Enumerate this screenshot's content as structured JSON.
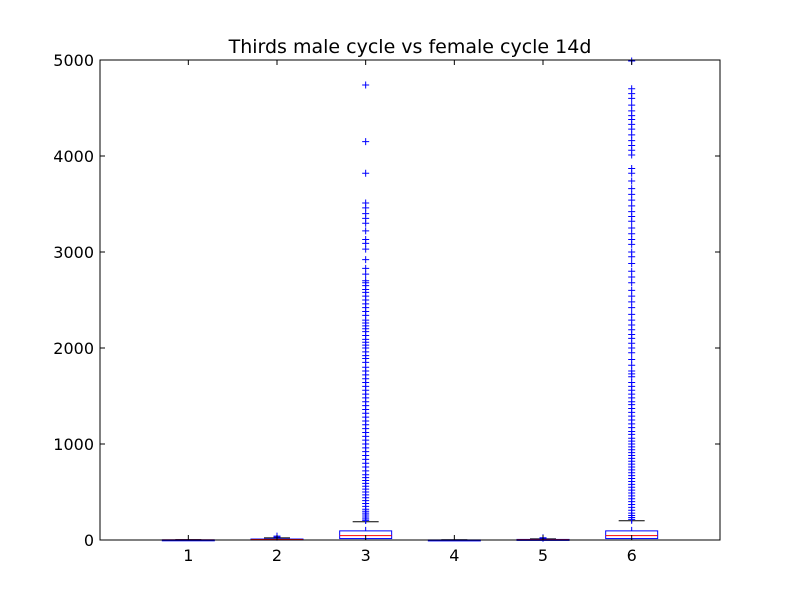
{
  "chart_data": {
    "type": "box",
    "title": "Thirds male cycle vs female cycle 14d",
    "xlabel": "",
    "ylabel": "",
    "categories": [
      "1",
      "2",
      "3",
      "4",
      "5",
      "6"
    ],
    "ylim": [
      0,
      5000
    ],
    "yticks": [
      0,
      1000,
      2000,
      3000,
      4000,
      5000
    ],
    "grid": false,
    "legend": "none",
    "colors": {
      "box": "#0000ff",
      "median": "#ff0000",
      "whisker": "#000000",
      "flier": "#0000ff"
    },
    "flier_marker": "+",
    "boxes": [
      {
        "category": "1",
        "q1": 0,
        "median": 1,
        "q3": 2,
        "whisker_low": 0,
        "whisker_high": 4,
        "fliers": []
      },
      {
        "category": "2",
        "q1": 2,
        "median": 5,
        "q3": 10,
        "whisker_low": 0,
        "whisker_high": 22,
        "fliers": [
          30,
          40
        ]
      },
      {
        "category": "3",
        "q1": 15,
        "median": 45,
        "q3": 95,
        "whisker_low": 0,
        "whisker_high": 190,
        "fliers": [
          4740,
          4150,
          3820,
          3510,
          3460,
          3400,
          3350,
          3300,
          3220,
          3130,
          3090,
          3030,
          2920,
          2830,
          2770,
          2700,
          2680,
          2650,
          2610,
          2580,
          2540,
          2500,
          2460,
          2420,
          2380,
          2340,
          2290,
          2260,
          2230,
          2200,
          2170,
          2130,
          2090,
          2060,
          2030,
          2000,
          1960,
          1920,
          1890,
          1850,
          1800,
          1760,
          1720,
          1680,
          1640,
          1600,
          1560,
          1520,
          1480,
          1440,
          1400,
          1360,
          1320,
          1280,
          1240,
          1200,
          1160,
          1120,
          1080,
          1040,
          1000,
          960,
          920,
          880,
          840,
          800,
          760,
          720,
          680,
          650,
          620,
          590,
          560,
          530,
          500,
          470,
          440,
          410,
          380,
          350,
          320,
          300,
          280,
          260,
          240,
          220,
          205
        ]
      },
      {
        "category": "4",
        "q1": 0,
        "median": 0,
        "q3": 1,
        "whisker_low": 0,
        "whisker_high": 2,
        "fliers": []
      },
      {
        "category": "5",
        "q1": 1,
        "median": 3,
        "q3": 6,
        "whisker_low": 0,
        "whisker_high": 12,
        "fliers": [
          18,
          24
        ]
      },
      {
        "category": "6",
        "q1": 15,
        "median": 45,
        "q3": 95,
        "whisker_low": 0,
        "whisker_high": 200,
        "fliers": [
          4990,
          4700,
          4650,
          4600,
          4530,
          4470,
          4420,
          4380,
          4330,
          4280,
          4220,
          4160,
          4110,
          4060,
          4010,
          3870,
          3820,
          3740,
          3660,
          3600,
          3540,
          3480,
          3420,
          3370,
          3320,
          3250,
          3190,
          3130,
          3080,
          3000,
          2950,
          2880,
          2800,
          2740,
          2680,
          2600,
          2540,
          2480,
          2420,
          2350,
          2290,
          2240,
          2190,
          2140,
          2100,
          2050,
          2000,
          1950,
          1880,
          1820,
          1760,
          1730,
          1700,
          1640,
          1600,
          1560,
          1520,
          1480,
          1440,
          1410,
          1370,
          1330,
          1290,
          1250,
          1210,
          1170,
          1130,
          1100,
          1060,
          1030,
          1000,
          970,
          940,
          910,
          880,
          850,
          820,
          790,
          760,
          730,
          700,
          670,
          640,
          610,
          580,
          550,
          520,
          490,
          460,
          430,
          400,
          370,
          340,
          310,
          280,
          255,
          235,
          215
        ]
      }
    ]
  }
}
